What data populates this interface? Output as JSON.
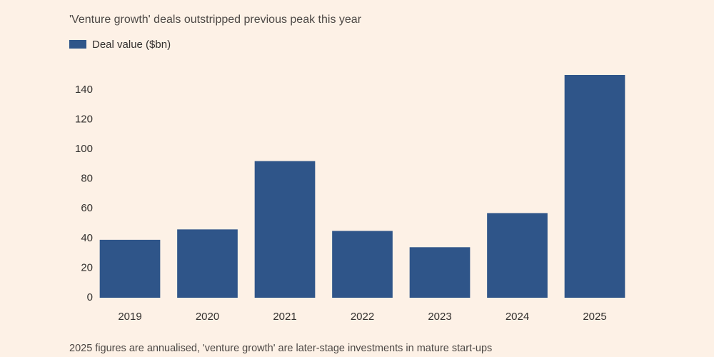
{
  "chart_data": {
    "type": "bar",
    "subtitle": "'Venture growth' deals outstripped previous peak this year",
    "legend": "Deal value ($bn)",
    "note": "2025 figures are annualised, 'venture growth' are later-stage investments in mature start-ups",
    "categories": [
      "2019",
      "2020",
      "2021",
      "2022",
      "2023",
      "2024",
      "2025"
    ],
    "values": [
      39,
      46,
      92,
      45,
      34,
      57,
      150
    ],
    "color": "#2f5589",
    "ylim": [
      0,
      150
    ],
    "yticks": [
      0,
      20,
      40,
      60,
      80,
      100,
      120,
      140
    ],
    "grid": false
  }
}
